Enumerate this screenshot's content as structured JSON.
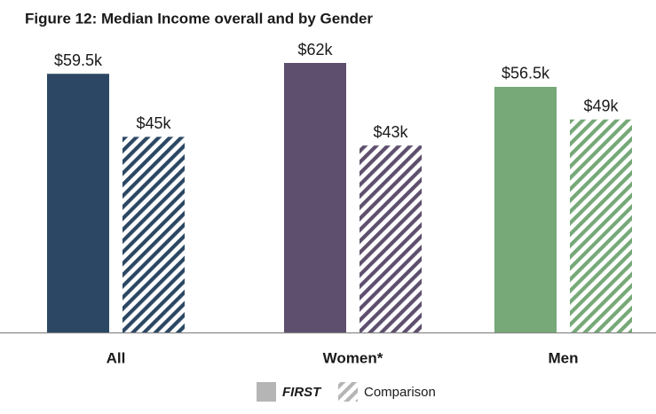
{
  "chart_data": {
    "type": "bar",
    "title": "Figure 12: Median Income overall and by Gender",
    "categories": [
      "All",
      "Women*",
      "Men"
    ],
    "category_colors": [
      "#2b4763",
      "#5e4f6e",
      "#76a878"
    ],
    "series": [
      {
        "name": "FIRST",
        "color": "#b5b5b5",
        "pattern": "solid",
        "values": [
          59.5,
          62,
          56.5
        ],
        "value_labels": [
          "$59.5k",
          "$62k",
          "$56.5k"
        ]
      },
      {
        "name": "Comparison",
        "color": "#b5b5b5",
        "pattern": "hatch",
        "values": [
          45,
          43,
          49
        ],
        "value_labels": [
          "$45k",
          "$43k",
          "$49k"
        ]
      }
    ]
  }
}
